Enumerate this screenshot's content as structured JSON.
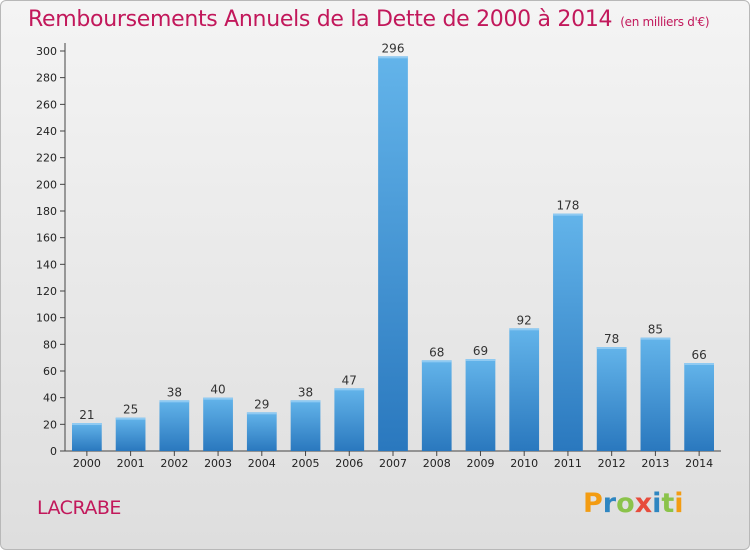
{
  "header": {
    "title": "Remboursements Annuels de la Dette de 2000 à 2014",
    "subtitle": "(en milliers d'€)"
  },
  "footer": {
    "town": "LACRABE",
    "logo": "Proxiti",
    "logo_colors": [
      "#f39c12",
      "#2e86c1",
      "#8bc34a",
      "#e74c3c",
      "#2e86c1",
      "#8bc34a",
      "#f39c12"
    ]
  },
  "colors": {
    "bar_top": "#63b4ea",
    "bar_bottom": "#2a78be",
    "title": "#c2185b"
  },
  "chart_data": {
    "type": "bar",
    "title": "Remboursements Annuels de la Dette de 2000 à 2014",
    "subtitle": "(en milliers d'€)",
    "categories": [
      "2000",
      "2001",
      "2002",
      "2003",
      "2004",
      "2005",
      "2006",
      "2007",
      "2008",
      "2009",
      "2010",
      "2011",
      "2012",
      "2013",
      "2014"
    ],
    "values": [
      21,
      25,
      38,
      40,
      29,
      38,
      47,
      296,
      68,
      69,
      92,
      178,
      78,
      85,
      66
    ],
    "ylim": [
      0,
      300
    ],
    "yticks": [
      0,
      20,
      40,
      60,
      80,
      100,
      120,
      140,
      160,
      180,
      200,
      220,
      240,
      260,
      280,
      300
    ],
    "grid": false,
    "legend": "none"
  }
}
